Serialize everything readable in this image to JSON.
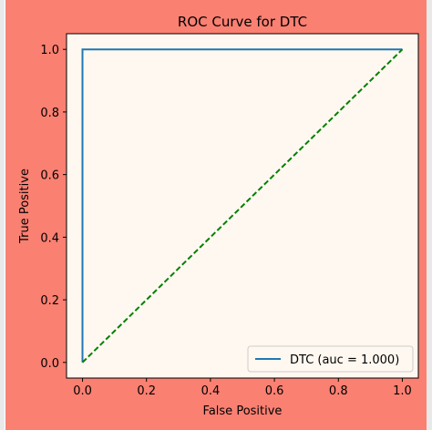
{
  "colors": {
    "figure_background": "#fa8072",
    "plot_background": "#fff8f0",
    "roc_line": "#1f77b4",
    "reference_line": "#008000",
    "axis": "#000000"
  },
  "chart_data": {
    "type": "line",
    "title": "ROC Curve for DTC",
    "xlabel": "False Positive",
    "ylabel": "True Positive",
    "xlim": [
      -0.05,
      1.05
    ],
    "ylim": [
      -0.05,
      1.05
    ],
    "xticks": [
      0.0,
      0.2,
      0.4,
      0.6,
      0.8,
      1.0
    ],
    "yticks": [
      0.0,
      0.2,
      0.4,
      0.6,
      0.8,
      1.0
    ],
    "xtick_labels": [
      "0.0",
      "0.2",
      "0.4",
      "0.6",
      "0.8",
      "1.0"
    ],
    "ytick_labels": [
      "0.0",
      "0.2",
      "0.4",
      "0.6",
      "0.8",
      "1.0"
    ],
    "grid": false,
    "legend": {
      "placement": "lower-right",
      "entries": [
        "DTC (auc = 1.000)"
      ]
    },
    "series": [
      {
        "name": "DTC (auc = 1.000)",
        "style": "solid",
        "color": "#1f77b4",
        "x": [
          0.0,
          0.0,
          1.0
        ],
        "y": [
          0.0,
          1.0,
          1.0
        ]
      },
      {
        "style": "dashed",
        "color": "#008000",
        "x": [
          0.0,
          1.0
        ],
        "y": [
          0.0,
          1.0
        ]
      }
    ]
  }
}
